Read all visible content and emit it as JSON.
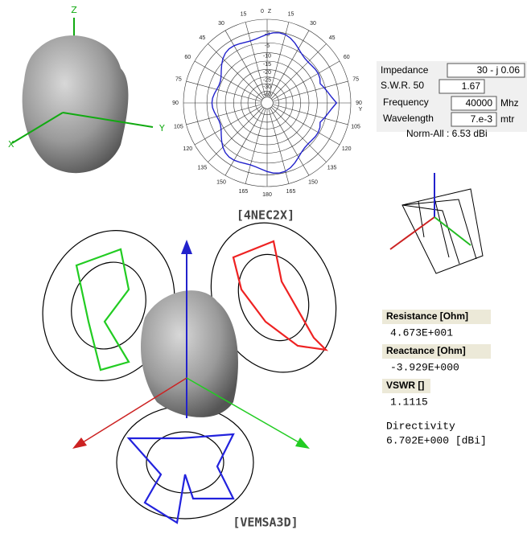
{
  "nec": {
    "axes": {
      "z": "Z",
      "x": "X",
      "y": "Y"
    },
    "polar": {
      "top_label": "0",
      "top_axis": "Z",
      "right_axis": "Y",
      "bottom_label": "180",
      "left_labels": [
        "15",
        "30",
        "45",
        "60",
        "75",
        "90",
        "105",
        "120",
        "135",
        "150",
        "165"
      ],
      "right_labels": [
        "15",
        "30",
        "45",
        "60",
        "75",
        "90",
        "105",
        "120",
        "135",
        "150",
        "165"
      ],
      "radial_labels": [
        "-3",
        "-5",
        "-10",
        "-15",
        "-20",
        "-25",
        "-30",
        "-40"
      ]
    },
    "panel": {
      "impedance_label": "Impedance",
      "impedance_value": "30 - j 0.06",
      "swr_label": "S.W.R. 50",
      "swr_value": "1.67",
      "frequency_label": "Frequency",
      "frequency_value": "40000",
      "frequency_unit": "Mhz",
      "wavelength_label": "Wavelength",
      "wavelength_value": "7.e-3",
      "wavelength_unit": "mtr",
      "norm": "Norm-All : 6.53 dBi"
    },
    "caption": "[4NEC2X]"
  },
  "vemsa": {
    "resistance_label": "Resistance [Ohm]",
    "resistance_value": "4.673E+001",
    "reactance_label": "Reactance [Ohm]",
    "reactance_value": "-3.929E+000",
    "vswr_label": "VSWR []",
    "vswr_value": "1.1115",
    "directivity_label": "Directivity",
    "directivity_value": "6.702E+000 [dBi]",
    "caption": "[VEMSA3D]"
  }
}
